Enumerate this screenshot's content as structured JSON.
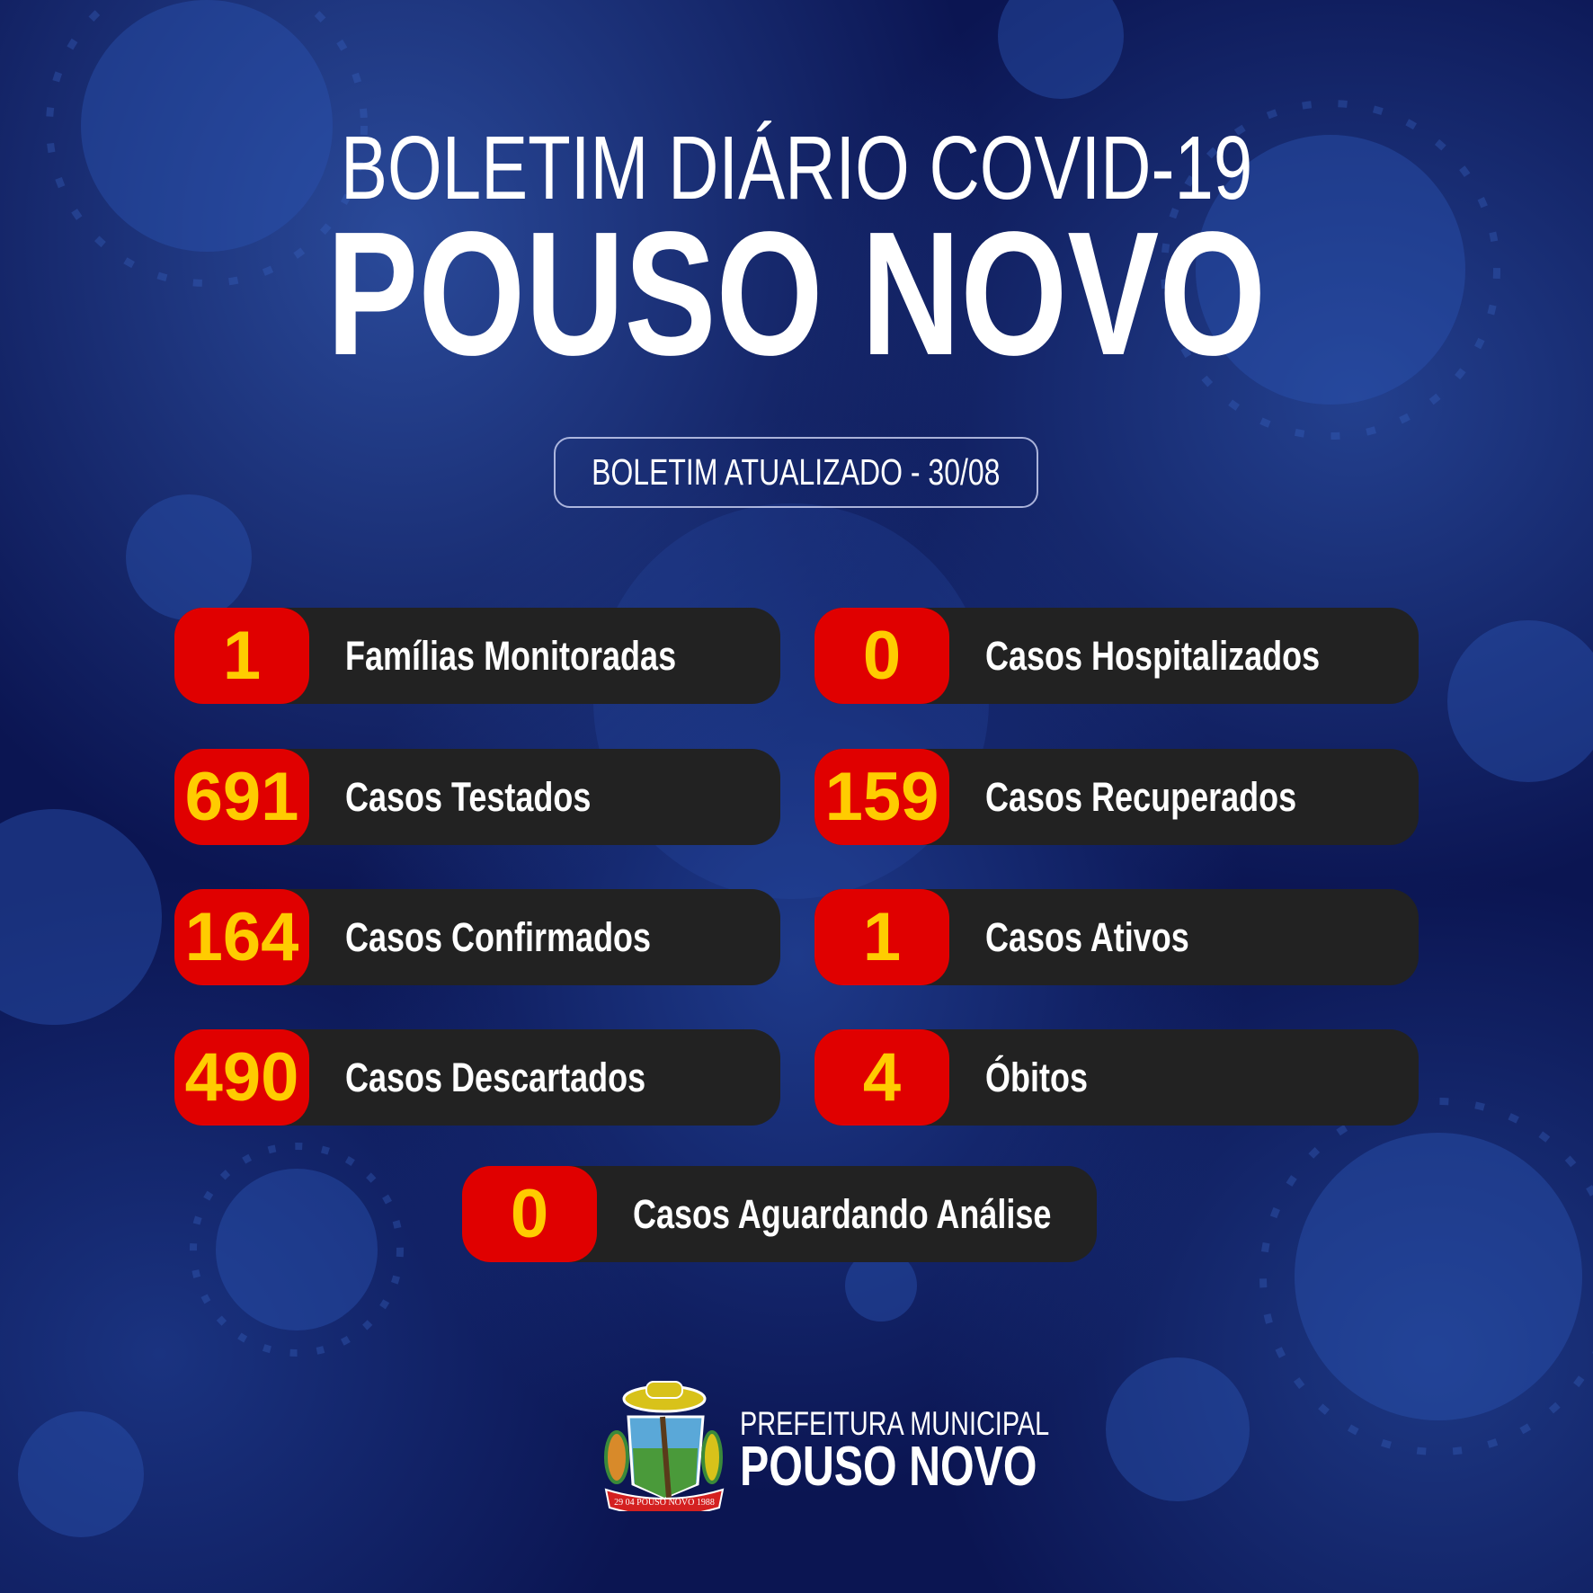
{
  "header": {
    "line1": "BOLETIM DIÁRIO COVID-19",
    "line2": "POUSO NOVO"
  },
  "update_label": "BOLETIM ATUALIZADO - 30/08",
  "stats": [
    {
      "value": "1",
      "label": "Famílias Monitoradas"
    },
    {
      "value": "0",
      "label": "Casos Hospitalizados"
    },
    {
      "value": "691",
      "label": "Casos Testados"
    },
    {
      "value": "159",
      "label": "Casos Recuperados"
    },
    {
      "value": "164",
      "label": "Casos Confirmados"
    },
    {
      "value": "1",
      "label": "Casos Ativos"
    },
    {
      "value": "490",
      "label": "Casos Descartados"
    },
    {
      "value": "4",
      "label": "Óbitos"
    },
    {
      "value": "0",
      "label": "Casos Aguardando Análise"
    }
  ],
  "footer": {
    "org_line1": "PREFEITURA MUNICIPAL",
    "org_line2": "POUSO NOVO",
    "crest_text": "29 04 POUSO NOVO 1988"
  },
  "colors": {
    "background": "#0b1552",
    "badge": "#e00000",
    "number": "#ffcc00",
    "card": "#222222"
  },
  "icons": [
    "virus-background",
    "municipal-crest"
  ]
}
